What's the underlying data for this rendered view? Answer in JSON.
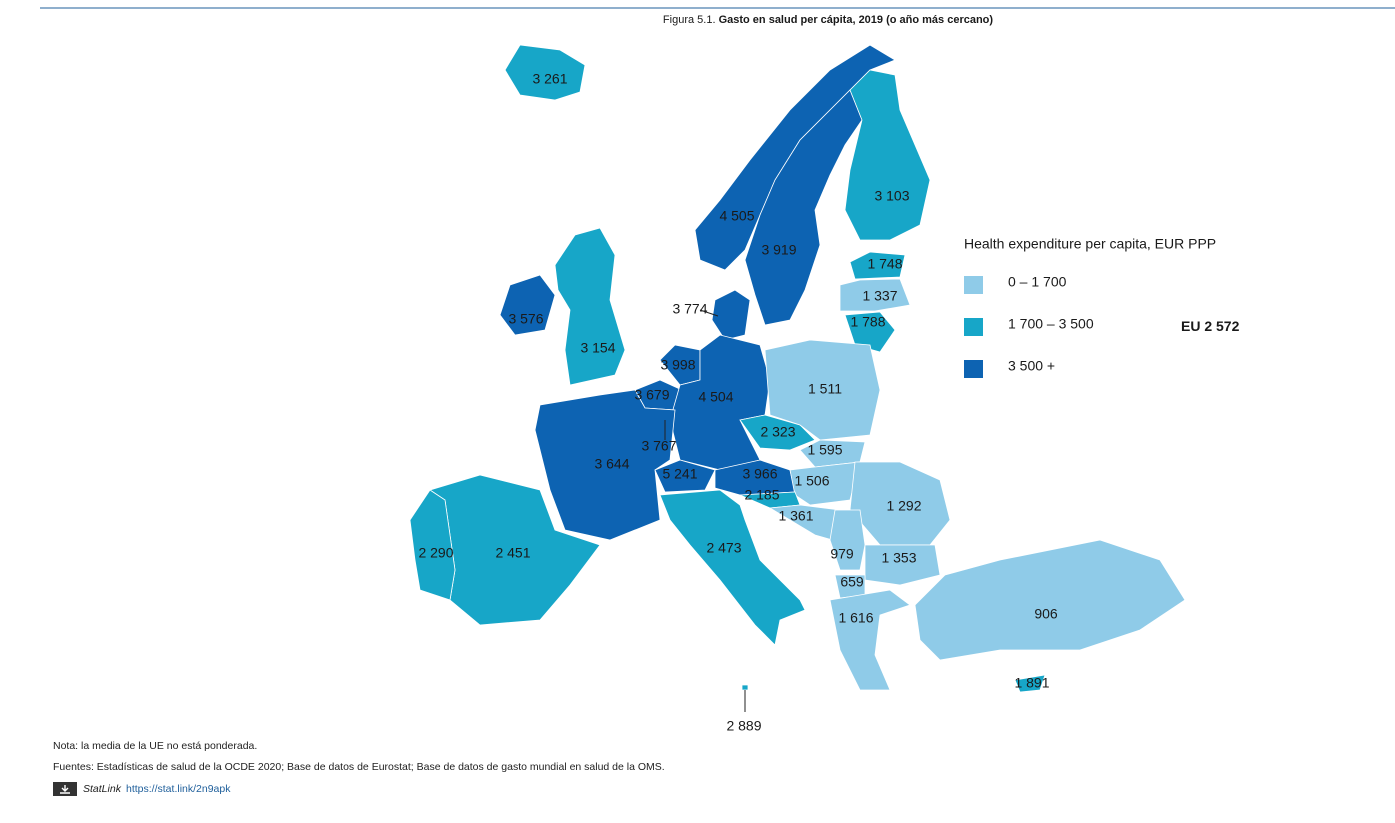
{
  "header": {
    "prefix": "Figura 5.1.",
    "title": "Gasto en salud per cápita, 2019 (o año más cercano)"
  },
  "legend": {
    "title": "Health expenditure per capita, EUR PPP",
    "items": [
      {
        "label": "0 – 1 700",
        "color": "#8fcbe8"
      },
      {
        "label": "1 700 – 3 500",
        "color": "#17a6c8"
      },
      {
        "label": "3 500 +",
        "color": "#0d63b2"
      }
    ]
  },
  "eu": {
    "label": "EU",
    "value": "2 572"
  },
  "regions": [
    {
      "label": "3 261",
      "color": "#17a6c8"
    },
    {
      "label": "4 505",
      "color": "#0d63b2"
    },
    {
      "label": "3 919",
      "color": "#0d63b2"
    },
    {
      "label": "3 103",
      "color": "#17a6c8"
    },
    {
      "label": "1 748",
      "color": "#17a6c8"
    },
    {
      "label": "1 337",
      "color": "#8fcbe8"
    },
    {
      "label": "1 788",
      "color": "#17a6c8"
    },
    {
      "label": "3 774",
      "color": "#0d63b2"
    },
    {
      "label": "3 576",
      "color": "#0d63b2"
    },
    {
      "label": "3 154",
      "color": "#17a6c8"
    },
    {
      "label": "3 998",
      "color": "#0d63b2"
    },
    {
      "label": "3 679",
      "color": "#0d63b2"
    },
    {
      "label": "4 504",
      "color": "#0d63b2"
    },
    {
      "label": "3 767",
      "color": "#0d63b2"
    },
    {
      "label": "3 644",
      "color": "#0d63b2"
    },
    {
      "label": "5 241",
      "color": "#0d63b2"
    },
    {
      "label": "3 966",
      "color": "#0d63b2"
    },
    {
      "label": "2 323",
      "color": "#17a6c8"
    },
    {
      "label": "1 511",
      "color": "#8fcbe8"
    },
    {
      "label": "1 595",
      "color": "#8fcbe8"
    },
    {
      "label": "1 506",
      "color": "#8fcbe8"
    },
    {
      "label": "2 185",
      "color": "#17a6c8"
    },
    {
      "label": "1 361",
      "color": "#8fcbe8"
    },
    {
      "label": "1 292",
      "color": "#8fcbe8"
    },
    {
      "label": "979",
      "color": "#8fcbe8"
    },
    {
      "label": "1 353",
      "color": "#8fcbe8"
    },
    {
      "label": "659",
      "color": "#8fcbe8"
    },
    {
      "label": "1 616",
      "color": "#8fcbe8"
    },
    {
      "label": "906",
      "color": "#8fcbe8"
    },
    {
      "label": "1 891",
      "color": "#17a6c8"
    },
    {
      "label": "2 473",
      "color": "#17a6c8"
    },
    {
      "label": "2 451",
      "color": "#17a6c8"
    },
    {
      "label": "2 290",
      "color": "#17a6c8"
    },
    {
      "label": "2 889",
      "color": "#17a6c8"
    }
  ],
  "notes": {
    "note": "Nota: la media de la UE no está ponderada.",
    "sources": "Fuentes: Estadísticas de salud de la OCDE 2020; Base de datos de Eurostat; Base de datos de gasto mundial en salud de la OMS.",
    "statlink": "StatLink",
    "url": "https://stat.link/2n9apk"
  }
}
